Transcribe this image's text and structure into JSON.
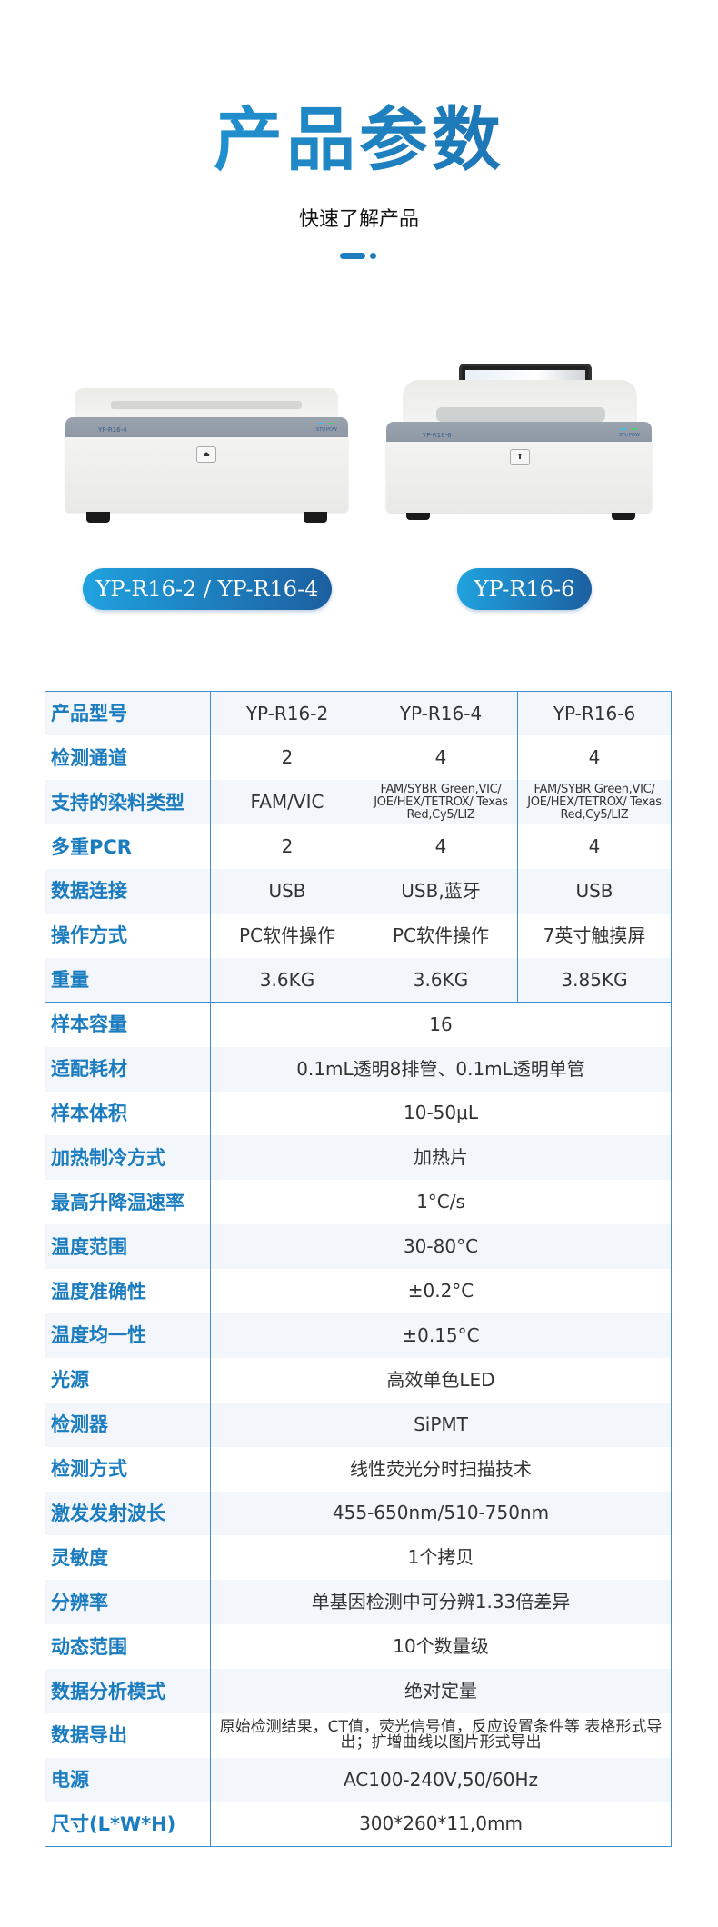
{
  "header": {
    "title": "产品参数",
    "subtitle": "快速了解产品"
  },
  "products": [
    {
      "label": "YP-R16-2 / YP-R16-4",
      "brand": "YP-R16-4",
      "leds": [
        "STU",
        "POW"
      ]
    },
    {
      "label": "YP-R16-6",
      "brand": "YP-R16-6",
      "leds": [
        "STU",
        "POW"
      ]
    }
  ],
  "colors": {
    "accent": "#1b7cc0",
    "border": "#3f8fd0",
    "pill_start": "#20a2df",
    "pill_end": "#1c5fa0"
  },
  "table": {
    "header": {
      "label": "产品型号",
      "models": [
        "YP-R16-2",
        "YP-R16-4",
        "YP-R16-6"
      ]
    },
    "model_rows": [
      {
        "label": "检测通道",
        "values": [
          "2",
          "4",
          "4"
        ]
      },
      {
        "label": "支持的染料类型",
        "values": [
          "FAM/VIC",
          "FAM/SYBR Green,VIC/ JOE/HEX/TETROX/ Texas Red,Cy5/LIZ",
          "FAM/SYBR Green,VIC/ JOE/HEX/TETROX/ Texas Red,Cy5/LIZ"
        ]
      },
      {
        "label": "多重PCR",
        "values": [
          "2",
          "4",
          "4"
        ]
      },
      {
        "label": "数据连接",
        "values": [
          "USB",
          "USB,蓝牙",
          "USB"
        ]
      },
      {
        "label": "操作方式",
        "values": [
          "PC软件操作",
          "PC软件操作",
          "7英寸触摸屏"
        ]
      },
      {
        "label": "重量",
        "values": [
          "3.6KG",
          "3.6KG",
          "3.85KG"
        ]
      }
    ],
    "common_rows": [
      {
        "label": "样本容量",
        "value": "16"
      },
      {
        "label": "适配耗材",
        "value": "0.1mL透明8排管、0.1mL透明单管"
      },
      {
        "label": "样本体积",
        "value": "10-50μL"
      },
      {
        "label": "加热制冷方式",
        "value": "加热片"
      },
      {
        "label": "最高升降温速率",
        "value": "1°C/s"
      },
      {
        "label": "温度范围",
        "value": "30-80°C"
      },
      {
        "label": "温度准确性",
        "value": "±0.2°C"
      },
      {
        "label": "温度均一性",
        "value": "±0.15°C"
      },
      {
        "label": "光源",
        "value": "高效单色LED"
      },
      {
        "label": "检测器",
        "value": "SiPMT"
      },
      {
        "label": "检测方式",
        "value": "线性荧光分时扫描技术"
      },
      {
        "label": "激发发射波长",
        "value": "455-650nm/510-750nm"
      },
      {
        "label": "灵敏度",
        "value": "1个拷贝"
      },
      {
        "label": "分辨率",
        "value": "单基因检测中可分辨1.33倍差异"
      },
      {
        "label": "动态范围",
        "value": "10个数量级"
      },
      {
        "label": "数据分析模式",
        "value": "绝对定量"
      },
      {
        "label": "数据导出",
        "value": "原始检测结果，CT值，荧光信号值，反应设置条件等 表格形式导出；扩增曲线以图片形式导出"
      },
      {
        "label": "电源",
        "value": "AC100-240V,50/60Hz"
      },
      {
        "label": "尺寸(L*W*H)",
        "value": "300*260*11,0mm"
      }
    ]
  }
}
